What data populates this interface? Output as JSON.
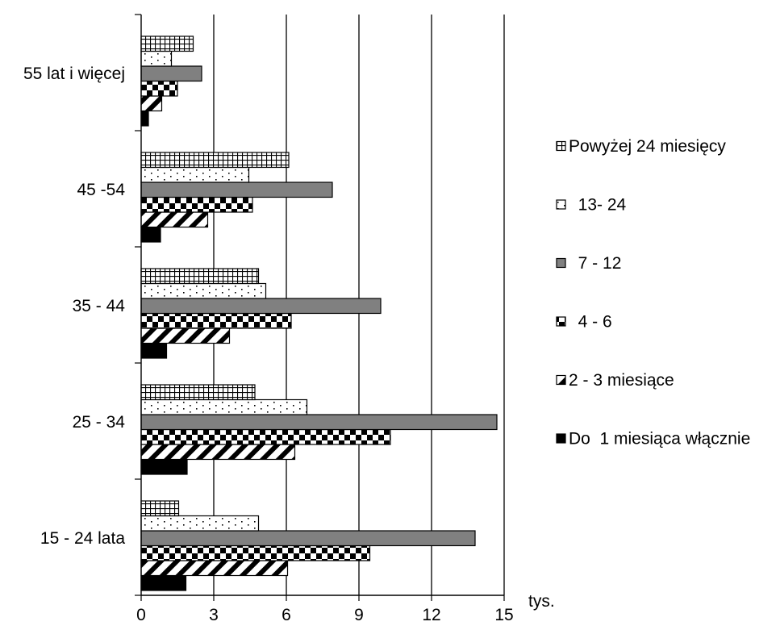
{
  "chart_data": {
    "type": "bar",
    "orientation": "horizontal",
    "title": "",
    "xlabel": "",
    "x_unit_label": "tys.",
    "xlim": [
      0,
      15
    ],
    "xticks": [
      0,
      3,
      6,
      9,
      12,
      15
    ],
    "grid": true,
    "legend_position": "right",
    "categories": [
      "15 - 24 lata",
      "25 - 34",
      "35 - 44",
      "45 -54",
      "55 lat i więcej"
    ],
    "series": [
      {
        "name": "Do  1 miesiąca włącznie",
        "pattern": "solid-black",
        "values": [
          1.85,
          1.9,
          1.05,
          0.8,
          0.3
        ]
      },
      {
        "name": "2 - 3 miesiące",
        "pattern": "diagonal",
        "values": [
          6.05,
          6.35,
          3.65,
          2.75,
          0.85
        ]
      },
      {
        "name": "4 - 6",
        "pattern": "checker",
        "values": [
          9.45,
          10.3,
          6.2,
          4.6,
          1.5
        ]
      },
      {
        "name": "7 - 12",
        "pattern": "solid-gray",
        "values": [
          13.8,
          14.7,
          9.9,
          7.9,
          2.5
        ]
      },
      {
        "name": "13- 24",
        "pattern": "dots",
        "values": [
          4.85,
          6.85,
          5.15,
          4.45,
          1.25
        ]
      },
      {
        "name": "Powyżej 24 miesięcy",
        "pattern": "grid",
        "values": [
          1.55,
          4.7,
          4.85,
          6.1,
          2.15
        ]
      }
    ],
    "legend_order": [
      5,
      4,
      3,
      2,
      1,
      0
    ],
    "colors": {
      "black": "#000000",
      "gray": "#808080",
      "white": "#ffffff"
    }
  }
}
